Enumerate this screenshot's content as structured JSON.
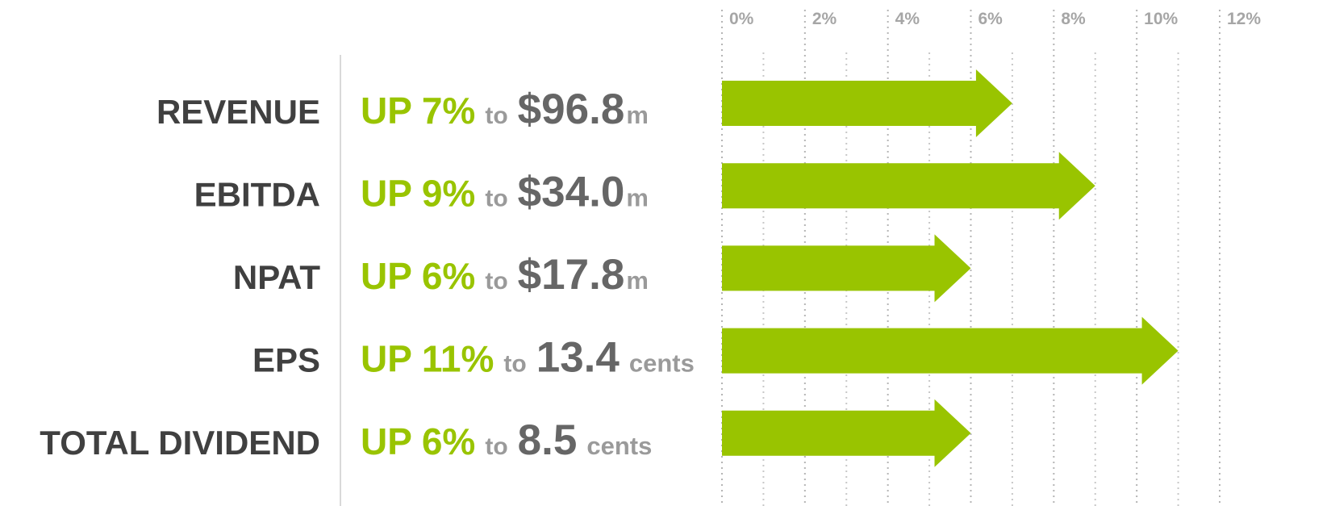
{
  "chart_data": {
    "type": "arrow-bar",
    "categories": [
      "REVENUE",
      "EBITDA",
      "NPAT",
      "EPS",
      "TOTAL DIVIDEND"
    ],
    "values": [
      7,
      9,
      6,
      11,
      6
    ],
    "value_labels": [
      "UP 7%",
      "UP 9%",
      "UP 6%",
      "UP 11%",
      "UP 6%"
    ],
    "connector": "to",
    "amounts": [
      "$96.8",
      "$34.0",
      "$17.8",
      "13.4",
      "8.5"
    ],
    "units": [
      "m",
      "m",
      "m",
      "cents",
      "cents"
    ],
    "color": "#99c400",
    "xlim": [
      0,
      12
    ],
    "xticks": [
      {
        "value": 0,
        "label": "0%"
      },
      {
        "value": 2,
        "label": "2%"
      },
      {
        "value": 4,
        "label": "4%"
      },
      {
        "value": 6,
        "label": "6%"
      },
      {
        "value": 8,
        "label": "8%"
      },
      {
        "value": 10,
        "label": "10%"
      },
      {
        "value": 12,
        "label": "12%"
      }
    ],
    "xticks_minor": [
      1,
      3,
      5,
      7,
      9,
      11
    ],
    "grid": true
  }
}
